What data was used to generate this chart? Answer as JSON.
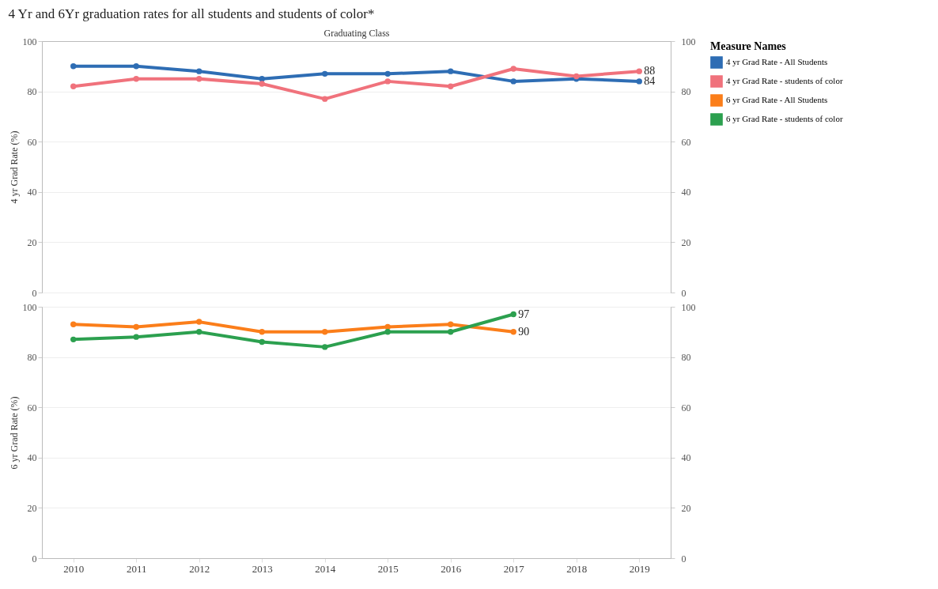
{
  "chart_data": [
    {
      "type": "line",
      "title": "4 Yr and 6Yr graduation rates for all students and students of color*",
      "xlabel": "Graduating Class",
      "ylabel": "4 yr Grad Rate (%)",
      "legend_title": "Measure Names",
      "legend": "right",
      "grid": "y",
      "marker": "circle",
      "tick_labels": "y",
      "categories": [
        "2010",
        "2011",
        "2012",
        "2013",
        "2014",
        "2015",
        "2016",
        "2017",
        "2018",
        "2019"
      ],
      "ylim": [
        0,
        100
      ],
      "yticks": [
        0,
        20,
        40,
        60,
        80,
        100
      ],
      "y2lim": [
        0,
        100
      ],
      "y2ticks": [
        0,
        20,
        40,
        60,
        80,
        100
      ],
      "series": [
        {
          "name": "4 yr Grad Rate - All Students",
          "color": "#2e6db4",
          "values": [
            90,
            90,
            88,
            85,
            87,
            87,
            88,
            84,
            85,
            84
          ],
          "value_labels": [
            null,
            null,
            null,
            null,
            null,
            null,
            null,
            null,
            null,
            "84"
          ]
        },
        {
          "name": "4 yr Grad Rate - students of color",
          "color": "#f0727c",
          "values": [
            82,
            85,
            85,
            83,
            77,
            84,
            82,
            89,
            86,
            88
          ],
          "value_labels": [
            null,
            null,
            null,
            null,
            null,
            null,
            null,
            null,
            null,
            "88"
          ]
        }
      ]
    },
    {
      "type": "line",
      "ylabel": "6 yr Grad Rate (%)",
      "legend": "right",
      "grid": "y",
      "marker": "circle",
      "categories": [
        "2010",
        "2011",
        "2012",
        "2013",
        "2014",
        "2015",
        "2016",
        "2017",
        "2018",
        "2019"
      ],
      "ylim": [
        0,
        100
      ],
      "yticks": [
        0,
        20,
        40,
        60,
        80,
        100
      ],
      "y2lim": [
        0,
        100
      ],
      "y2ticks": [
        0,
        20,
        40,
        60,
        80,
        100
      ],
      "series": [
        {
          "name": "6 yr Grad Rate - All Students",
          "color": "#fb7e1a",
          "values": [
            93,
            92,
            94,
            90,
            90,
            92,
            93,
            90,
            null,
            null
          ],
          "value_labels": [
            null,
            null,
            null,
            null,
            null,
            null,
            null,
            "90",
            null,
            null
          ]
        },
        {
          "name": "6 yr Grad Rate - students of color",
          "color": "#2ca04f",
          "values": [
            87,
            88,
            90,
            86,
            84,
            90,
            90,
            97,
            null,
            null
          ],
          "value_labels": [
            null,
            null,
            null,
            null,
            null,
            null,
            null,
            "97",
            null,
            null
          ]
        }
      ]
    }
  ]
}
